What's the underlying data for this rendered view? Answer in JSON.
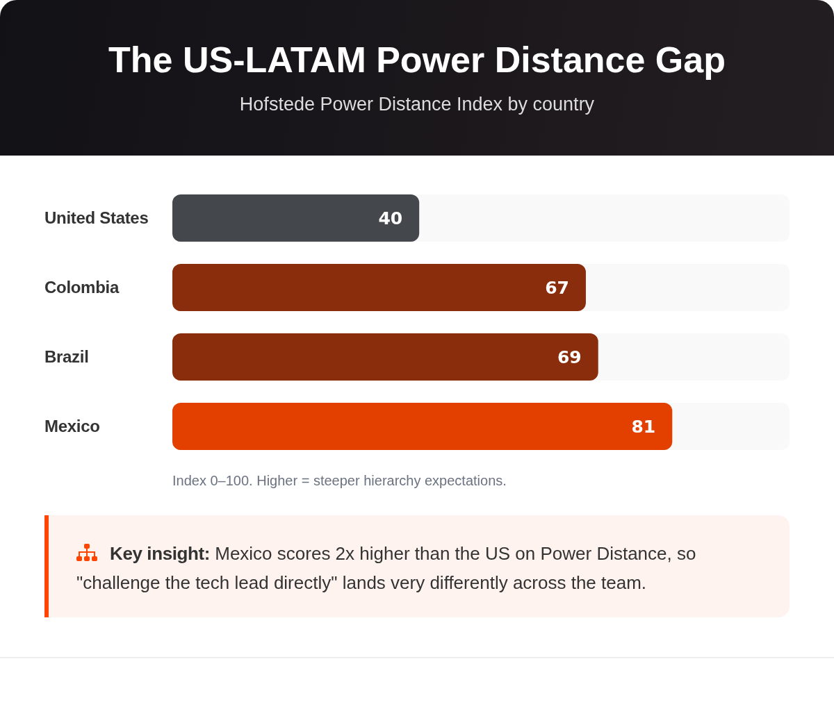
{
  "chart_data": {
    "type": "bar",
    "title": "The US-LATAM Power Distance Gap",
    "subtitle": "Hofstede Power Distance Index by country",
    "orientation": "horizontal",
    "categories": [
      "United States",
      "Colombia",
      "Brazil",
      "Mexico"
    ],
    "values": [
      40,
      67,
      69,
      81
    ],
    "colors": [
      "#44474c",
      "#8a2d0c",
      "#8a2d0c",
      "#e34000"
    ],
    "xlim": [
      0,
      100
    ],
    "data_labels": true,
    "tick_labels": "y",
    "annotations": [
      "Index 0–100. Higher = steeper hierarchy expectations.",
      "Key insight: Mexico scores 2x higher than the US on Power Distance, so \"challenge the tech lead directly\" lands very differently across the team."
    ]
  }
}
